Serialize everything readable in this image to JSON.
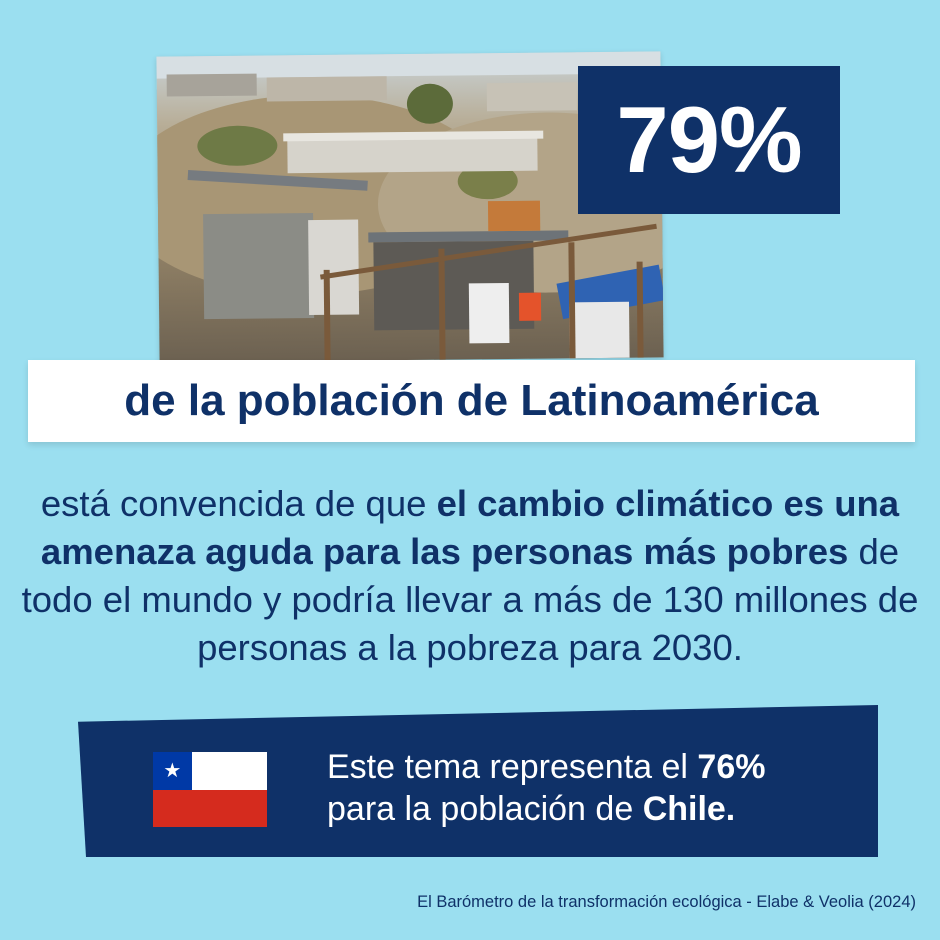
{
  "hero": {
    "percent": "79%",
    "headline": "de la población de Latinoamérica"
  },
  "body": {
    "intro": "está convencida de que ",
    "highlight_1": "el cambio climático es una amenaza aguda para las personas más pobres",
    "rest": " de todo el mundo y podría llevar a más de 130 millones de personas a la pobreza para 2030."
  },
  "chile": {
    "line1_prefix": "Este tema representa el ",
    "line1_value": "76%",
    "line2_prefix": "para la población de ",
    "line2_country": "Chile."
  },
  "source": "El Barómetro de la transformación ecológica - Elabe & Veolia (2024)",
  "colors": {
    "background": "#9bdff0",
    "navy": "#0f3168",
    "white": "#ffffff",
    "flag_red": "#d52b1e",
    "flag_blue": "#0039a6"
  },
  "icons": {
    "flag": "chile-flag-icon",
    "star": "star-icon"
  }
}
